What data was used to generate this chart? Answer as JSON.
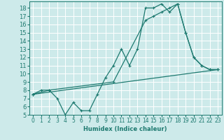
{
  "xlabel": "Humidex (Indice chaleur)",
  "bg_color": "#cdeaea",
  "grid_color": "#ffffff",
  "line_color": "#1e7a70",
  "xlim": [
    -0.5,
    23.5
  ],
  "ylim": [
    5,
    18.8
  ],
  "xticks": [
    0,
    1,
    2,
    3,
    4,
    5,
    6,
    7,
    8,
    9,
    10,
    11,
    12,
    13,
    14,
    15,
    16,
    17,
    18,
    19,
    20,
    21,
    22,
    23
  ],
  "yticks": [
    5,
    6,
    7,
    8,
    9,
    10,
    11,
    12,
    13,
    14,
    15,
    16,
    17,
    18
  ],
  "series1_x": [
    0,
    1,
    2,
    3,
    4,
    5,
    6,
    7,
    8,
    9,
    10,
    11,
    12,
    13,
    14,
    15,
    16,
    17,
    18,
    19,
    20,
    21,
    22,
    23
  ],
  "series1_y": [
    7.5,
    8,
    8,
    7,
    5,
    6.5,
    5.5,
    5.5,
    7.5,
    9.5,
    11,
    13,
    11,
    13,
    18,
    18,
    18.5,
    17.5,
    18.5,
    15,
    12,
    11,
    10.5,
    10.5
  ],
  "series2_x": [
    0,
    2,
    10,
    14,
    15,
    16,
    17,
    18,
    19,
    20,
    21,
    22,
    23
  ],
  "series2_y": [
    7.5,
    8,
    9,
    16.5,
    17,
    17.5,
    18,
    18.5,
    15,
    12,
    11,
    10.5,
    10.5
  ],
  "series3_x": [
    0,
    23
  ],
  "series3_y": [
    7.5,
    10.5
  ],
  "xlabel_fontsize": 6.0,
  "tick_fontsize": 5.5
}
